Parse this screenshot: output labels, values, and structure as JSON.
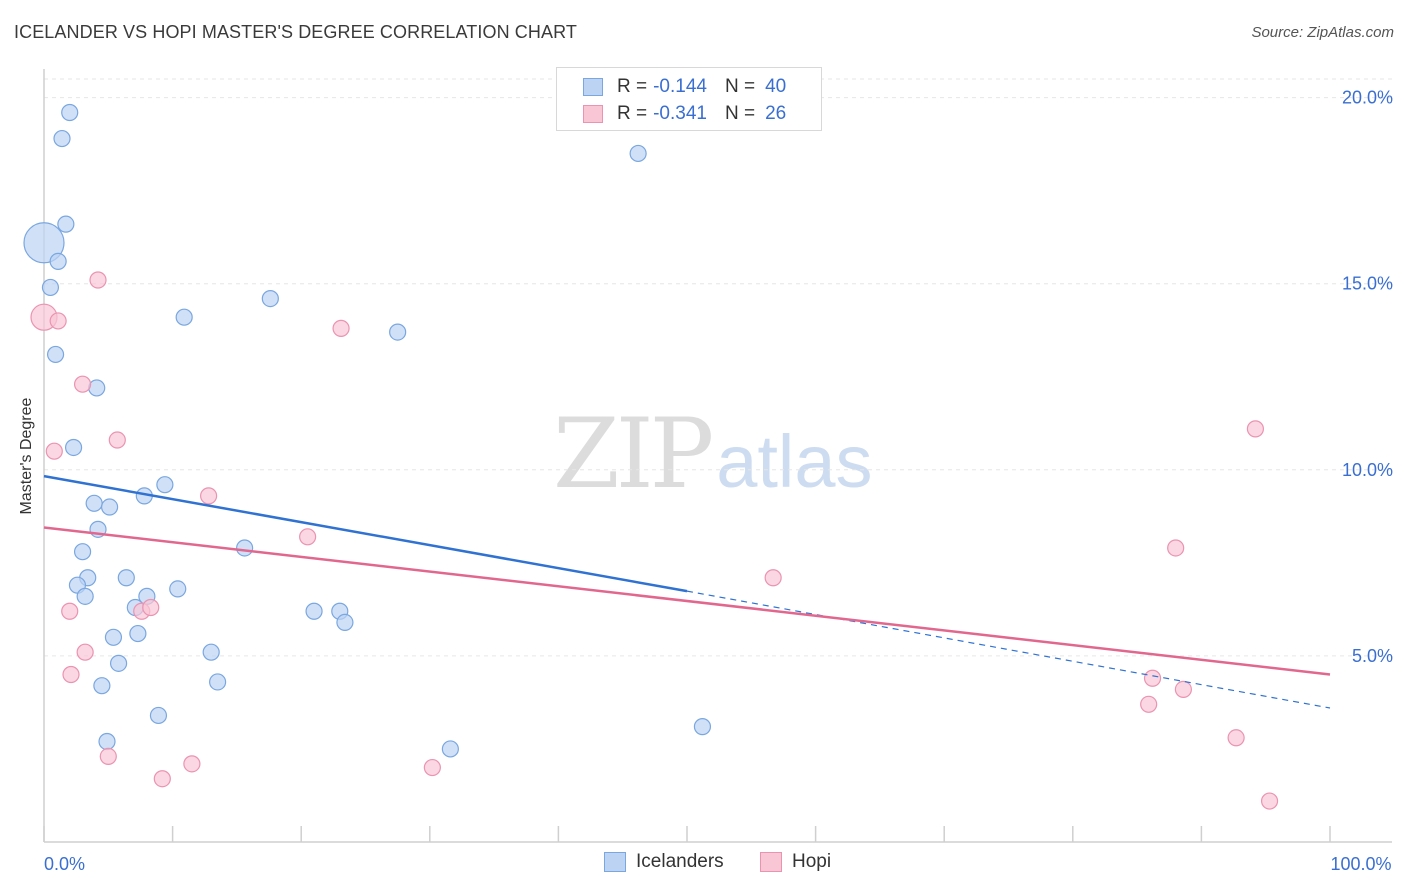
{
  "header": {
    "title": "ICELANDER VS HOPI MASTER'S DEGREE CORRELATION CHART",
    "source": "Source: ZipAtlas.com"
  },
  "watermark": {
    "zip": "ZIP",
    "atlas": "atlas"
  },
  "legend": {
    "rows": [
      {
        "r_label": "R =",
        "r_value": "-0.144",
        "n_label": "N =",
        "n_value": "40"
      },
      {
        "r_label": "R =",
        "r_value": "-0.341",
        "n_label": "N =",
        "n_value": "26"
      }
    ]
  },
  "bottom_legend": {
    "icelanders": "Icelanders",
    "hopi": "Hopi"
  },
  "chart_data": {
    "type": "scatter",
    "title": "ICELANDER VS HOPI MASTER'S DEGREE CORRELATION CHART",
    "xlabel": "",
    "ylabel": "Master's Degree",
    "xlim": [
      0,
      100
    ],
    "ylim": [
      0,
      20.5
    ],
    "x_tick_labels": [
      {
        "value": 0,
        "label": "0.0%"
      },
      {
        "value": 100,
        "label": "100.0%"
      }
    ],
    "y_tick_labels": [
      {
        "value": 5,
        "label": "5.0%"
      },
      {
        "value": 10,
        "label": "10.0%"
      },
      {
        "value": 15,
        "label": "15.0%"
      },
      {
        "value": 20,
        "label": "20.0%"
      }
    ],
    "x_minor_ticks": [
      0,
      10,
      20,
      30,
      40,
      50,
      60,
      70,
      80,
      90,
      100
    ],
    "grid": true,
    "colors": {
      "icelanders_fill": "#bcd3f4",
      "icelanders_stroke": "#7aa7e0",
      "icelanders_line": "#2f72d2",
      "hopi_fill": "#f8c6d5",
      "hopi_stroke": "#eb93b1",
      "hopi_line": "#e2678f",
      "tick_label": "#3a6fd1"
    },
    "series": [
      {
        "name": "Icelanders",
        "points": [
          [
            2.0,
            19.6
          ],
          [
            1.4,
            18.9
          ],
          [
            46.2,
            18.5
          ],
          [
            1.7,
            16.6
          ],
          [
            0.0,
            16.1
          ],
          [
            1.1,
            15.6
          ],
          [
            0.5,
            14.9
          ],
          [
            17.6,
            14.6
          ],
          [
            10.9,
            14.1
          ],
          [
            27.5,
            13.7
          ],
          [
            0.9,
            13.1
          ],
          [
            4.1,
            12.2
          ],
          [
            2.3,
            10.6
          ],
          [
            9.4,
            9.6
          ],
          [
            7.8,
            9.3
          ],
          [
            3.9,
            9.1
          ],
          [
            5.1,
            9.0
          ],
          [
            4.2,
            8.4
          ],
          [
            15.6,
            7.9
          ],
          [
            3.0,
            7.8
          ],
          [
            3.4,
            7.1
          ],
          [
            6.4,
            7.1
          ],
          [
            2.6,
            6.9
          ],
          [
            10.4,
            6.8
          ],
          [
            8.0,
            6.6
          ],
          [
            3.2,
            6.6
          ],
          [
            7.1,
            6.3
          ],
          [
            21.0,
            6.2
          ],
          [
            23.0,
            6.2
          ],
          [
            23.4,
            5.9
          ],
          [
            7.3,
            5.6
          ],
          [
            5.4,
            5.5
          ],
          [
            13.0,
            5.1
          ],
          [
            5.8,
            4.8
          ],
          [
            13.5,
            4.3
          ],
          [
            4.5,
            4.2
          ],
          [
            8.9,
            3.4
          ],
          [
            51.2,
            3.1
          ],
          [
            4.9,
            2.7
          ],
          [
            31.6,
            2.5
          ]
        ],
        "trend": {
          "x0": 0,
          "y0": 9.83,
          "x1": 50,
          "y1": 6.74,
          "dashed_to_x": 100,
          "dashed_to_y": 3.6
        }
      },
      {
        "name": "Hopi",
        "points": [
          [
            0.0,
            14.1
          ],
          [
            4.2,
            15.1
          ],
          [
            1.1,
            14.0
          ],
          [
            23.1,
            13.8
          ],
          [
            3.0,
            12.3
          ],
          [
            94.2,
            11.1
          ],
          [
            5.7,
            10.8
          ],
          [
            0.8,
            10.5
          ],
          [
            12.8,
            9.3
          ],
          [
            20.5,
            8.2
          ],
          [
            88.0,
            7.9
          ],
          [
            56.7,
            7.1
          ],
          [
            2.0,
            6.2
          ],
          [
            7.6,
            6.2
          ],
          [
            8.3,
            6.3
          ],
          [
            3.2,
            5.1
          ],
          [
            2.1,
            4.5
          ],
          [
            86.2,
            4.4
          ],
          [
            88.6,
            4.1
          ],
          [
            85.9,
            3.7
          ],
          [
            92.7,
            2.8
          ],
          [
            5.0,
            2.3
          ],
          [
            11.5,
            2.1
          ],
          [
            30.2,
            2.0
          ],
          [
            9.2,
            1.7
          ],
          [
            95.3,
            1.1
          ]
        ],
        "trend": {
          "x0": 0,
          "y0": 8.45,
          "x1": 100,
          "y1": 4.5
        }
      }
    ]
  }
}
